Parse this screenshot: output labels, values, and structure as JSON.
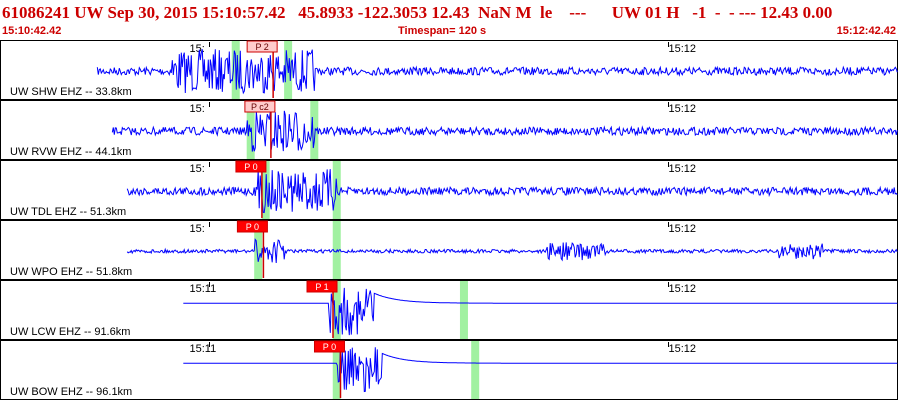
{
  "header": {
    "title": "61086241 UW Sep 30, 2015 15:10:57.42   45.8933 -122.3053 12.43  NaN M  le    ---      UW 01 H   -1  -  - --- 12.43 0.00",
    "start_time": "15:10:42.42",
    "timespan": "Timespan= 120 s",
    "end_time": "15:12:42.42"
  },
  "colors": {
    "trace": "#0000ff",
    "header_text": "#cc0000",
    "pick_box": "#ff0000",
    "pick_box_light": "#ffcccc",
    "pick_line": "#cc0000",
    "window_band": "#90ee90",
    "panel_border": "#000000"
  },
  "chart_data": {
    "type": "line",
    "title": "",
    "x_unit": "s",
    "xlim": [
      0,
      120
    ],
    "time_marker": {
      "t": 90,
      "label": "15:12"
    },
    "start_label_t": 30,
    "traces": [
      {
        "label": "UW SHW EHZ -- 33.8km",
        "start_label": "15:",
        "pick_label": "P 2",
        "pick_style": "light",
        "pick_t": 36.5,
        "trace_start_t": 13,
        "trace_end_t": 120,
        "shape": "noise",
        "windows": [
          31.5,
          38.5
        ],
        "burst": [
          23,
          42
        ]
      },
      {
        "label": "UW RVW EHZ -- 44.1km",
        "start_label": "15:",
        "pick_label": "P c2",
        "pick_style": "light",
        "pick_t": 36.2,
        "trace_start_t": 15,
        "trace_end_t": 120,
        "shape": "noise",
        "windows": [
          33.5,
          42
        ],
        "burst": [
          33,
          42
        ]
      },
      {
        "label": "UW TDL EHZ -- 51.3km",
        "start_label": "15:",
        "pick_label": "P 0",
        "pick_style": "solid",
        "pick_t": 35,
        "trace_start_t": 17,
        "trace_end_t": 120,
        "shape": "noise",
        "windows": [
          35.5,
          45
        ],
        "burst": [
          34,
          45
        ]
      },
      {
        "label": "UW WPO EHZ -- 51.8km",
        "start_label": "15:",
        "pick_label": "P 0",
        "pick_style": "solid",
        "pick_t": 35.2,
        "trace_start_t": 17,
        "trace_end_t": 120,
        "shape": "quiet",
        "windows": [
          34.5,
          45
        ],
        "burst": [
          34,
          38
        ]
      },
      {
        "label": "UW LCW EHZ -- 91.6km",
        "start_label": "15:11",
        "pick_label": "P 1",
        "pick_style": "solid",
        "pick_t": 44.5,
        "trace_start_t": 24.5,
        "trace_end_t": 120,
        "shape": "flat",
        "windows": [
          45,
          62
        ],
        "burst": [
          44,
          50
        ]
      },
      {
        "label": "UW BOW EHZ -- 96.1km",
        "start_label": "15:11",
        "pick_label": "P 0",
        "pick_style": "solid",
        "pick_t": 45.5,
        "trace_start_t": 24.5,
        "trace_end_t": 120,
        "shape": "flat",
        "windows": [
          45,
          63.5
        ],
        "burst": [
          45,
          51
        ]
      }
    ]
  }
}
